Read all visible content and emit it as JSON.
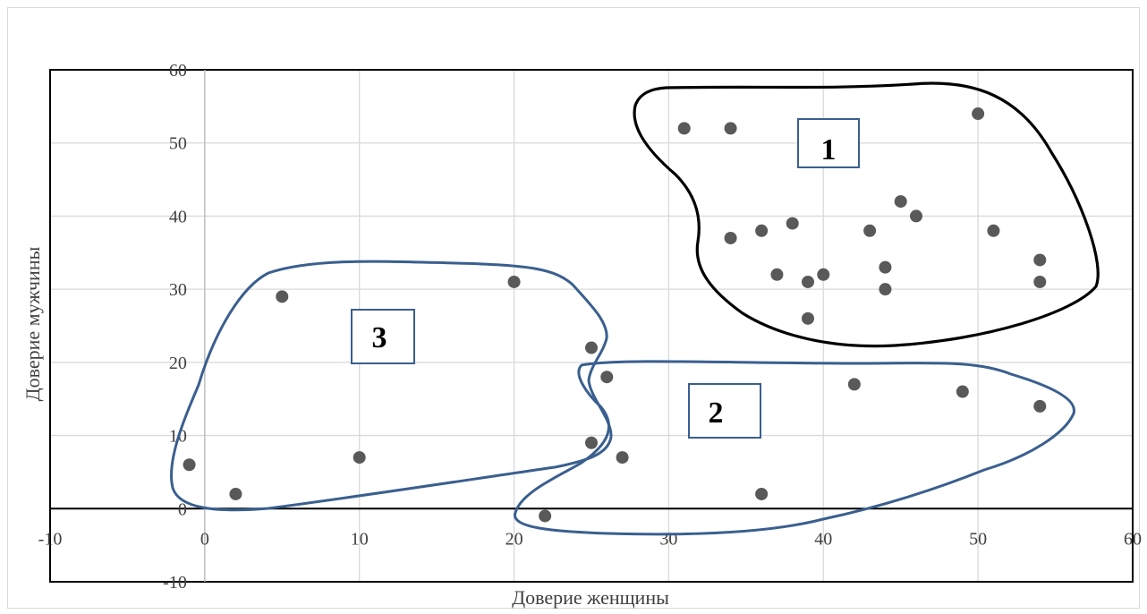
{
  "chart_data": {
    "type": "scatter",
    "title": "",
    "xlabel": "Доверие женщины",
    "ylabel": "Доверие мужчины",
    "xlim": [
      -10,
      60
    ],
    "ylim": [
      -10,
      60
    ],
    "x_ticks": [
      "-10",
      "0",
      "10",
      "20",
      "30",
      "40",
      "50",
      "60"
    ],
    "y_ticks": [
      "-10",
      "0",
      "10",
      "20",
      "30",
      "40",
      "50",
      "60"
    ],
    "grid": true,
    "legend": "none",
    "point_color": "#595959",
    "series": [
      {
        "points": [
          [
            31,
            52
          ],
          [
            34,
            52
          ],
          [
            50,
            54
          ],
          [
            45,
            42
          ],
          [
            46,
            40
          ],
          [
            38,
            39
          ],
          [
            34,
            37
          ],
          [
            36,
            38
          ],
          [
            43,
            38
          ],
          [
            51,
            38
          ],
          [
            37,
            32
          ],
          [
            39,
            31
          ],
          [
            40,
            32
          ],
          [
            44,
            33
          ],
          [
            44,
            30
          ],
          [
            54,
            34
          ],
          [
            54,
            31
          ],
          [
            39,
            26
          ],
          [
            25,
            22
          ],
          [
            26,
            18
          ],
          [
            42,
            17
          ],
          [
            49,
            16
          ],
          [
            54,
            14
          ],
          [
            25,
            9
          ],
          [
            27,
            7
          ],
          [
            36,
            2
          ],
          [
            22,
            -1
          ],
          [
            5,
            29
          ],
          [
            20,
            31
          ],
          [
            -1,
            6
          ],
          [
            2,
            2
          ],
          [
            10,
            7
          ]
        ]
      }
    ],
    "clusters": [
      {
        "label": "1",
        "outline_color": "#000000"
      },
      {
        "label": "2",
        "outline_color": "#3a5f8f"
      },
      {
        "label": "3",
        "outline_color": "#3a5f8f"
      }
    ]
  }
}
